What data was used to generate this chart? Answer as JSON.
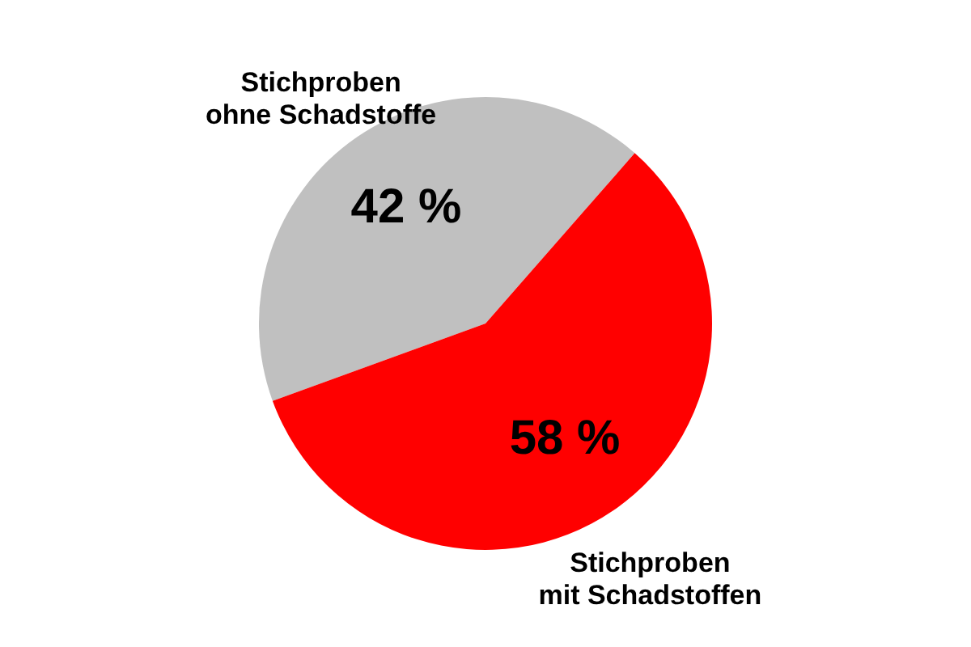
{
  "chart_data": {
    "type": "pie",
    "categories": [
      "Stichproben\nohne Schadstoffe",
      "Stichproben\nmit Schadstoffen"
    ],
    "values": [
      42,
      58
    ],
    "colors": [
      "#c0c0c0",
      "#ff0000"
    ],
    "value_labels": [
      "42 %",
      "58 %"
    ]
  }
}
